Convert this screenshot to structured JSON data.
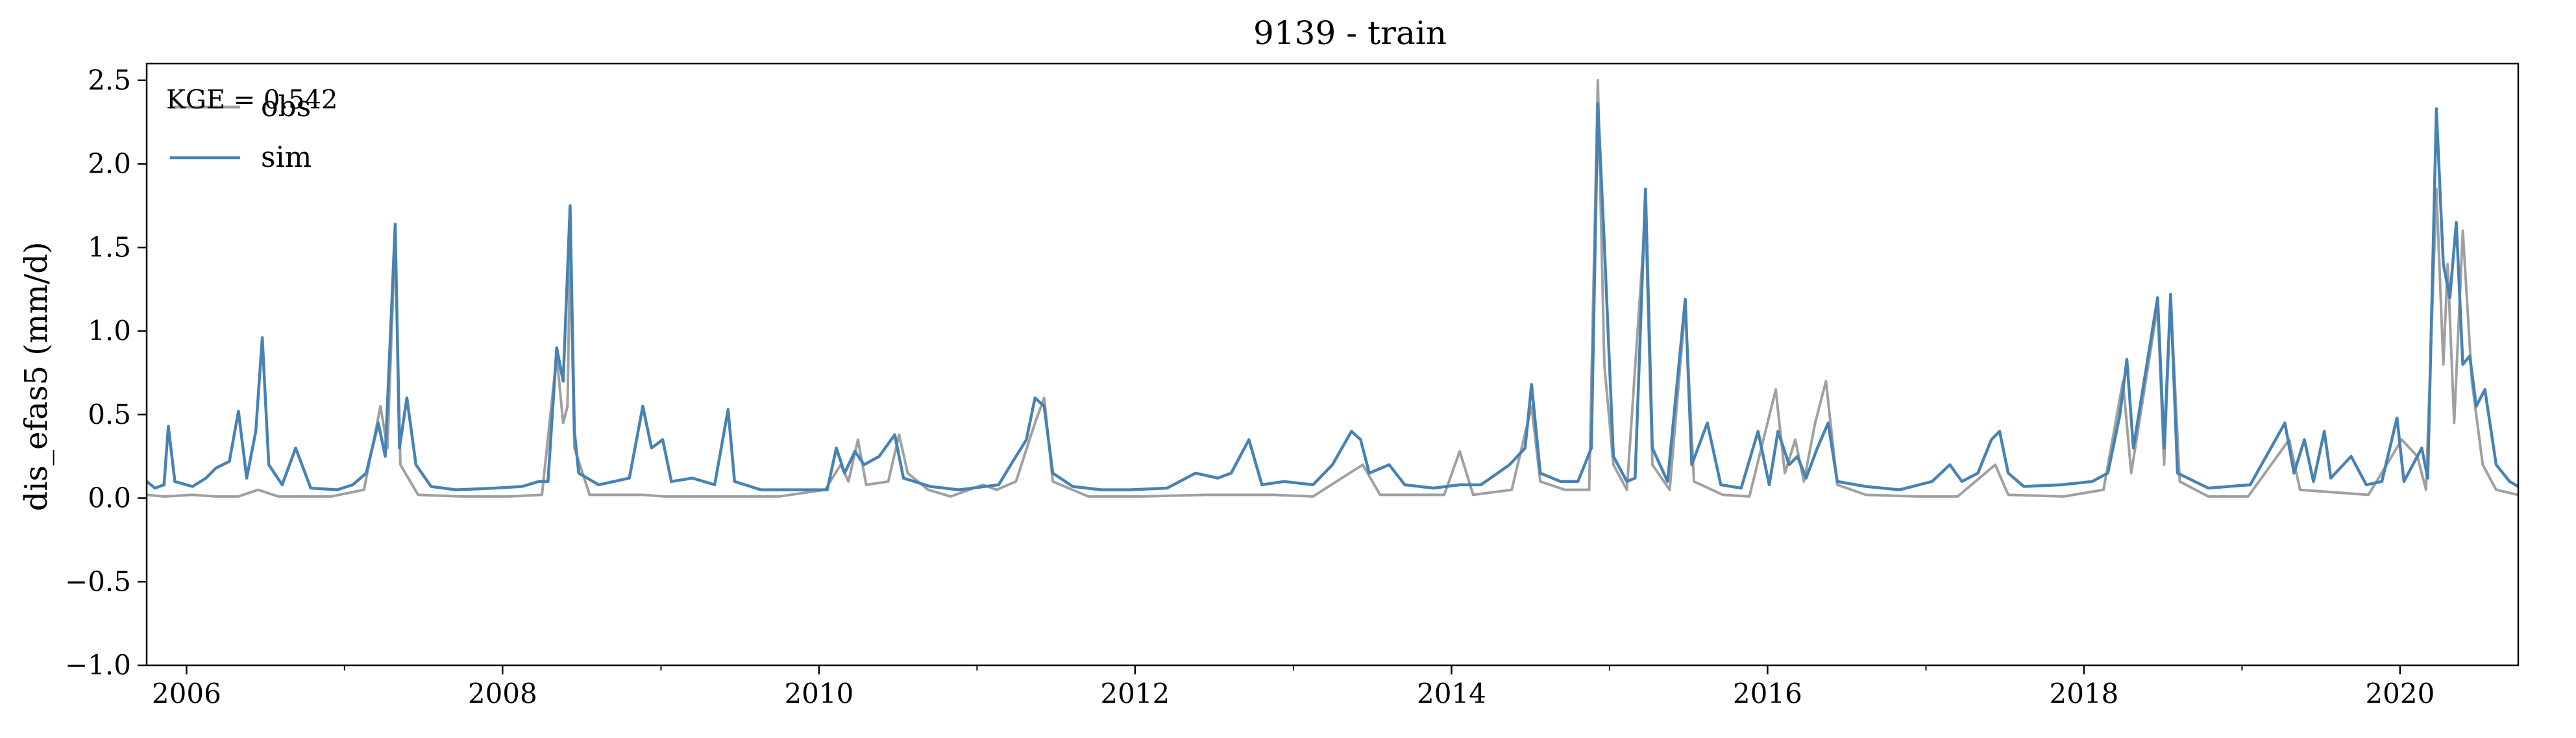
{
  "chart_data": {
    "type": "line",
    "title": "9139 - train",
    "xlabel": "",
    "ylabel": "dis_efas5 (mm/d)",
    "xlim": [
      "2005-10-01",
      "2020-09-30"
    ],
    "ylim": [
      -1.0,
      2.6
    ],
    "yticks": [
      -1.0,
      -0.5,
      0.0,
      0.5,
      1.0,
      1.5,
      2.0,
      2.5
    ],
    "ytick_labels": [
      "−1.0",
      "−0.5",
      "0.0",
      "0.5",
      "1.0",
      "1.5",
      "2.0",
      "2.5"
    ],
    "xticks": [
      "2006-01-01",
      "2008-01-01",
      "2010-01-01",
      "2012-01-01",
      "2014-01-01",
      "2016-01-01",
      "2018-01-01",
      "2020-01-01"
    ],
    "xtick_labels": [
      "2006",
      "2008",
      "2010",
      "2012",
      "2014",
      "2016",
      "2018",
      "2020"
    ],
    "minor_xticks": [
      "2007-01-01",
      "2009-01-01",
      "2011-01-01",
      "2013-01-01",
      "2015-01-01",
      "2017-01-01",
      "2019-01-01"
    ],
    "annotation": "KGE = 0.542",
    "legend_position": "top-left",
    "grid": false,
    "series": [
      {
        "name": "obs",
        "color": "#a0a0a0",
        "points": [
          [
            "2005-10-01",
            0.02
          ],
          [
            "2005-11-10",
            0.01
          ],
          [
            "2006-01-15",
            0.02
          ],
          [
            "2006-03-10",
            0.01
          ],
          [
            "2006-05-01",
            0.01
          ],
          [
            "2006-06-15",
            0.05
          ],
          [
            "2006-08-01",
            0.01
          ],
          [
            "2006-12-01",
            0.01
          ],
          [
            "2007-02-15",
            0.05
          ],
          [
            "2007-03-25",
            0.55
          ],
          [
            "2007-04-10",
            0.3
          ],
          [
            "2007-04-28",
            1.58
          ],
          [
            "2007-05-10",
            0.2
          ],
          [
            "2007-06-20",
            0.02
          ],
          [
            "2007-10-01",
            0.01
          ],
          [
            "2008-01-15",
            0.01
          ],
          [
            "2008-04-01",
            0.02
          ],
          [
            "2008-05-05",
            0.85
          ],
          [
            "2008-05-20",
            0.45
          ],
          [
            "2008-05-30",
            0.55
          ],
          [
            "2008-06-05",
            1.5
          ],
          [
            "2008-06-15",
            0.3
          ],
          [
            "2008-07-20",
            0.02
          ],
          [
            "2008-11-20",
            0.02
          ],
          [
            "2009-01-10",
            0.01
          ],
          [
            "2009-05-20",
            0.01
          ],
          [
            "2009-10-01",
            0.01
          ],
          [
            "2010-01-15",
            0.05
          ],
          [
            "2010-02-20",
            0.2
          ],
          [
            "2010-03-10",
            0.1
          ],
          [
            "2010-04-01",
            0.35
          ],
          [
            "2010-04-20",
            0.08
          ],
          [
            "2010-06-10",
            0.1
          ],
          [
            "2010-07-05",
            0.38
          ],
          [
            "2010-07-25",
            0.15
          ],
          [
            "2010-09-10",
            0.05
          ],
          [
            "2010-11-01",
            0.01
          ],
          [
            "2011-01-15",
            0.08
          ],
          [
            "2011-02-15",
            0.05
          ],
          [
            "2011-04-01",
            0.1
          ],
          [
            "2011-05-15",
            0.45
          ],
          [
            "2011-06-05",
            0.6
          ],
          [
            "2011-06-25",
            0.1
          ],
          [
            "2011-09-15",
            0.01
          ],
          [
            "2012-01-15",
            0.01
          ],
          [
            "2012-06-15",
            0.02
          ],
          [
            "2012-11-15",
            0.02
          ],
          [
            "2013-02-15",
            0.01
          ],
          [
            "2013-06-10",
            0.2
          ],
          [
            "2013-07-20",
            0.02
          ],
          [
            "2013-12-15",
            0.02
          ],
          [
            "2014-01-20",
            0.28
          ],
          [
            "2014-02-20",
            0.02
          ],
          [
            "2014-05-20",
            0.05
          ],
          [
            "2014-07-05",
            0.55
          ],
          [
            "2014-07-25",
            0.1
          ],
          [
            "2014-09-20",
            0.05
          ],
          [
            "2014-11-15",
            0.05
          ],
          [
            "2014-12-05",
            2.5
          ],
          [
            "2014-12-20",
            0.8
          ],
          [
            "2015-01-10",
            0.2
          ],
          [
            "2015-02-10",
            0.05
          ],
          [
            "2015-03-25",
            1.7
          ],
          [
            "2015-04-10",
            0.2
          ],
          [
            "2015-05-20",
            0.05
          ],
          [
            "2015-06-25",
            1.15
          ],
          [
            "2015-07-15",
            0.1
          ],
          [
            "2015-09-20",
            0.02
          ],
          [
            "2015-11-20",
            0.01
          ],
          [
            "2016-01-20",
            0.65
          ],
          [
            "2016-02-10",
            0.15
          ],
          [
            "2016-03-05",
            0.35
          ],
          [
            "2016-03-25",
            0.1
          ],
          [
            "2016-04-20",
            0.45
          ],
          [
            "2016-05-15",
            0.7
          ],
          [
            "2016-06-10",
            0.08
          ],
          [
            "2016-08-15",
            0.02
          ],
          [
            "2016-12-15",
            0.01
          ],
          [
            "2017-03-15",
            0.01
          ],
          [
            "2017-06-10",
            0.2
          ],
          [
            "2017-07-10",
            0.02
          ],
          [
            "2017-11-15",
            0.01
          ],
          [
            "2018-02-15",
            0.05
          ],
          [
            "2018-04-01",
            0.7
          ],
          [
            "2018-04-20",
            0.15
          ],
          [
            "2018-06-20",
            1.15
          ],
          [
            "2018-07-05",
            0.2
          ],
          [
            "2018-07-20",
            1.2
          ],
          [
            "2018-08-10",
            0.1
          ],
          [
            "2018-10-15",
            0.01
          ],
          [
            "2019-01-15",
            0.01
          ],
          [
            "2019-04-20",
            0.35
          ],
          [
            "2019-05-15",
            0.05
          ],
          [
            "2019-10-20",
            0.02
          ],
          [
            "2020-01-05",
            0.35
          ],
          [
            "2020-02-10",
            0.25
          ],
          [
            "2020-03-01",
            0.05
          ],
          [
            "2020-03-25",
            1.85
          ],
          [
            "2020-04-10",
            0.8
          ],
          [
            "2020-04-20",
            1.4
          ],
          [
            "2020-05-05",
            0.45
          ],
          [
            "2020-05-25",
            1.6
          ],
          [
            "2020-06-15",
            0.7
          ],
          [
            "2020-07-10",
            0.2
          ],
          [
            "2020-08-10",
            0.05
          ],
          [
            "2020-09-30",
            0.02
          ]
        ]
      },
      {
        "name": "sim",
        "color": "#4682b4",
        "points": [
          [
            "2005-10-01",
            0.1
          ],
          [
            "2005-10-20",
            0.06
          ],
          [
            "2005-11-10",
            0.08
          ],
          [
            "2005-11-20",
            0.43
          ],
          [
            "2005-12-05",
            0.1
          ],
          [
            "2006-01-15",
            0.07
          ],
          [
            "2006-02-15",
            0.12
          ],
          [
            "2006-03-10",
            0.18
          ],
          [
            "2006-04-10",
            0.22
          ],
          [
            "2006-05-01",
            0.52
          ],
          [
            "2006-05-20",
            0.12
          ],
          [
            "2006-06-10",
            0.4
          ],
          [
            "2006-06-25",
            0.96
          ],
          [
            "2006-07-10",
            0.2
          ],
          [
            "2006-08-10",
            0.08
          ],
          [
            "2006-09-10",
            0.3
          ],
          [
            "2006-10-15",
            0.06
          ],
          [
            "2006-12-15",
            0.05
          ],
          [
            "2007-01-20",
            0.08
          ],
          [
            "2007-02-20",
            0.15
          ],
          [
            "2007-03-20",
            0.45
          ],
          [
            "2007-04-05",
            0.25
          ],
          [
            "2007-04-28",
            1.64
          ],
          [
            "2007-05-08",
            0.3
          ],
          [
            "2007-05-25",
            0.6
          ],
          [
            "2007-06-15",
            0.2
          ],
          [
            "2007-07-20",
            0.07
          ],
          [
            "2007-09-15",
            0.05
          ],
          [
            "2007-12-15",
            0.06
          ],
          [
            "2008-02-15",
            0.07
          ],
          [
            "2008-03-25",
            0.1
          ],
          [
            "2008-04-15",
            0.1
          ],
          [
            "2008-05-05",
            0.9
          ],
          [
            "2008-05-20",
            0.7
          ],
          [
            "2008-06-05",
            1.75
          ],
          [
            "2008-06-15",
            0.4
          ],
          [
            "2008-06-25",
            0.15
          ],
          [
            "2008-08-10",
            0.08
          ],
          [
            "2008-10-20",
            0.12
          ],
          [
            "2008-11-20",
            0.55
          ],
          [
            "2008-12-10",
            0.3
          ],
          [
            "2009-01-05",
            0.35
          ],
          [
            "2009-01-25",
            0.1
          ],
          [
            "2009-03-15",
            0.12
          ],
          [
            "2009-05-05",
            0.08
          ],
          [
            "2009-06-05",
            0.53
          ],
          [
            "2009-06-20",
            0.1
          ],
          [
            "2009-08-20",
            0.05
          ],
          [
            "2009-11-15",
            0.05
          ],
          [
            "2010-01-20",
            0.05
          ],
          [
            "2010-02-10",
            0.3
          ],
          [
            "2010-03-01",
            0.15
          ],
          [
            "2010-03-25",
            0.28
          ],
          [
            "2010-04-15",
            0.2
          ],
          [
            "2010-05-20",
            0.25
          ],
          [
            "2010-06-25",
            0.38
          ],
          [
            "2010-07-15",
            0.12
          ],
          [
            "2010-09-15",
            0.07
          ],
          [
            "2010-11-20",
            0.05
          ],
          [
            "2011-02-20",
            0.08
          ],
          [
            "2011-03-20",
            0.2
          ],
          [
            "2011-04-25",
            0.35
          ],
          [
            "2011-05-15",
            0.6
          ],
          [
            "2011-06-05",
            0.55
          ],
          [
            "2011-06-25",
            0.15
          ],
          [
            "2011-08-10",
            0.07
          ],
          [
            "2011-10-15",
            0.05
          ],
          [
            "2011-12-20",
            0.05
          ],
          [
            "2012-03-15",
            0.06
          ],
          [
            "2012-05-20",
            0.15
          ],
          [
            "2012-07-10",
            0.12
          ],
          [
            "2012-08-10",
            0.15
          ],
          [
            "2012-09-20",
            0.35
          ],
          [
            "2012-10-20",
            0.08
          ],
          [
            "2012-12-10",
            0.1
          ],
          [
            "2013-02-15",
            0.08
          ],
          [
            "2013-04-01",
            0.2
          ],
          [
            "2013-05-15",
            0.4
          ],
          [
            "2013-06-05",
            0.35
          ],
          [
            "2013-06-25",
            0.15
          ],
          [
            "2013-08-10",
            0.2
          ],
          [
            "2013-09-15",
            0.08
          ],
          [
            "2013-11-20",
            0.06
          ],
          [
            "2014-01-20",
            0.08
          ],
          [
            "2014-03-10",
            0.08
          ],
          [
            "2014-05-15",
            0.2
          ],
          [
            "2014-06-20",
            0.3
          ],
          [
            "2014-07-05",
            0.68
          ],
          [
            "2014-07-25",
            0.15
          ],
          [
            "2014-09-10",
            0.1
          ],
          [
            "2014-10-20",
            0.1
          ],
          [
            "2014-11-20",
            0.3
          ],
          [
            "2014-12-05",
            2.36
          ],
          [
            "2014-12-20",
            1.52
          ],
          [
            "2015-01-10",
            0.25
          ],
          [
            "2015-02-10",
            0.1
          ],
          [
            "2015-03-01",
            0.12
          ],
          [
            "2015-03-25",
            1.85
          ],
          [
            "2015-04-10",
            0.3
          ],
          [
            "2015-05-15",
            0.1
          ],
          [
            "2015-06-25",
            1.19
          ],
          [
            "2015-07-10",
            0.2
          ],
          [
            "2015-08-15",
            0.45
          ],
          [
            "2015-09-15",
            0.08
          ],
          [
            "2015-11-01",
            0.06
          ],
          [
            "2015-12-10",
            0.4
          ],
          [
            "2016-01-05",
            0.08
          ],
          [
            "2016-01-25",
            0.4
          ],
          [
            "2016-02-20",
            0.2
          ],
          [
            "2016-03-10",
            0.25
          ],
          [
            "2016-03-30",
            0.12
          ],
          [
            "2016-04-25",
            0.3
          ],
          [
            "2016-05-20",
            0.45
          ],
          [
            "2016-06-10",
            0.1
          ],
          [
            "2016-08-15",
            0.07
          ],
          [
            "2016-11-01",
            0.05
          ],
          [
            "2017-01-15",
            0.1
          ],
          [
            "2017-02-25",
            0.2
          ],
          [
            "2017-03-25",
            0.1
          ],
          [
            "2017-05-01",
            0.15
          ],
          [
            "2017-06-01",
            0.35
          ],
          [
            "2017-06-20",
            0.4
          ],
          [
            "2017-07-10",
            0.15
          ],
          [
            "2017-08-15",
            0.07
          ],
          [
            "2017-11-10",
            0.08
          ],
          [
            "2018-01-20",
            0.1
          ],
          [
            "2018-02-25",
            0.15
          ],
          [
            "2018-03-25",
            0.5
          ],
          [
            "2018-04-10",
            0.83
          ],
          [
            "2018-04-25",
            0.3
          ],
          [
            "2018-06-20",
            1.2
          ],
          [
            "2018-07-05",
            0.3
          ],
          [
            "2018-07-20",
            1.22
          ],
          [
            "2018-08-05",
            0.15
          ],
          [
            "2018-10-15",
            0.06
          ],
          [
            "2019-01-20",
            0.08
          ],
          [
            "2019-04-10",
            0.45
          ],
          [
            "2019-05-01",
            0.15
          ],
          [
            "2019-05-25",
            0.35
          ],
          [
            "2019-06-15",
            0.1
          ],
          [
            "2019-07-10",
            0.4
          ],
          [
            "2019-07-25",
            0.12
          ],
          [
            "2019-09-10",
            0.25
          ],
          [
            "2019-10-15",
            0.08
          ],
          [
            "2019-11-20",
            0.1
          ],
          [
            "2019-12-25",
            0.48
          ],
          [
            "2020-01-10",
            0.1
          ],
          [
            "2020-02-20",
            0.3
          ],
          [
            "2020-03-05",
            0.12
          ],
          [
            "2020-03-25",
            2.33
          ],
          [
            "2020-04-10",
            1.4
          ],
          [
            "2020-04-25",
            1.2
          ],
          [
            "2020-05-10",
            1.65
          ],
          [
            "2020-05-25",
            0.8
          ],
          [
            "2020-06-10",
            0.85
          ],
          [
            "2020-06-25",
            0.55
          ],
          [
            "2020-07-15",
            0.65
          ],
          [
            "2020-08-10",
            0.2
          ],
          [
            "2020-09-10",
            0.1
          ],
          [
            "2020-09-30",
            0.07
          ]
        ]
      }
    ]
  }
}
